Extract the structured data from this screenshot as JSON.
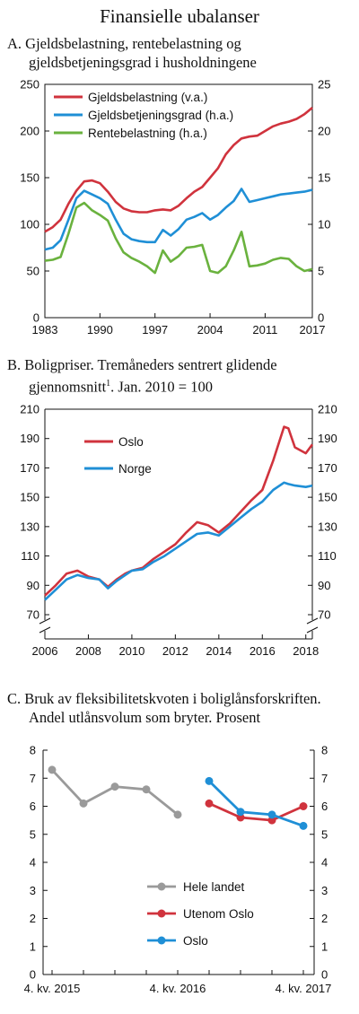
{
  "title": "Finansielle ubalanser",
  "panelA": {
    "title_prefix": "A.",
    "title_line1": "Gjeldsbelastning, rentebelastning og",
    "title_line2": "gjeldsbetjeningsgrad i husholdningene"
  },
  "panelB": {
    "title_prefix": "B.",
    "title_line1": "Boligpriser. Tremåneders sentrert glidende",
    "title_line2": "gjennomsnitt",
    "title_sup": "1",
    "title_line2_end": ". Jan. 2010 = 100"
  },
  "panelC": {
    "title_prefix": "C.",
    "title_line1": "Bruk av fleksibilitetskvoten i boliglånsforskriften.",
    "title_line2": "Andel utlånsvolum som bryter. Prosent"
  },
  "colors": {
    "red": "#d0333d",
    "blue": "#1f8fd6",
    "green": "#6ab23e",
    "gray": "#9a9a9a"
  },
  "chart_data": [
    {
      "type": "line",
      "x_ticks": [
        "1983",
        "1990",
        "1997",
        "2004",
        "2011",
        "2017"
      ],
      "xlim": [
        1983,
        2017
      ],
      "y_left_ticks": [
        "0",
        "50",
        "100",
        "150",
        "200",
        "250"
      ],
      "ylim_left": [
        0,
        250
      ],
      "y_right_ticks": [
        "0",
        "5",
        "10",
        "15",
        "20",
        "25"
      ],
      "ylim_right": [
        0,
        25
      ],
      "series": [
        {
          "name": "Gjeldsbelastning (v.a.)",
          "axis": "left",
          "color": "#d0333d",
          "x": [
            1983,
            1984,
            1985,
            1986,
            1987,
            1988,
            1989,
            1990,
            1991,
            1992,
            1993,
            1994,
            1995,
            1996,
            1997,
            1998,
            1999,
            2000,
            2001,
            2002,
            2003,
            2004,
            2005,
            2006,
            2007,
            2008,
            2009,
            2010,
            2011,
            2012,
            2013,
            2014,
            2015,
            2016,
            2017
          ],
          "y": [
            92,
            97,
            105,
            122,
            136,
            146,
            147,
            144,
            135,
            124,
            117,
            114,
            113,
            113,
            115,
            116,
            115,
            120,
            128,
            135,
            140,
            150,
            160,
            175,
            185,
            192,
            194,
            195,
            200,
            205,
            208,
            210,
            213,
            218,
            225
          ]
        },
        {
          "name": "Gjeldsbetjeningsgrad (h.a.)",
          "axis": "right",
          "color": "#1f8fd6",
          "x": [
            1983,
            1984,
            1985,
            1986,
            1987,
            1988,
            1989,
            1990,
            1991,
            1992,
            1993,
            1994,
            1995,
            1996,
            1997,
            1998,
            1999,
            2000,
            2001,
            2002,
            2003,
            2004,
            2005,
            2006,
            2007,
            2008,
            2009,
            2010,
            2011,
            2012,
            2013,
            2014,
            2015,
            2016,
            2017
          ],
          "y": [
            7.3,
            7.5,
            8.3,
            10.5,
            12.8,
            13.6,
            13.2,
            12.8,
            12.2,
            10.5,
            9.0,
            8.4,
            8.2,
            8.1,
            8.1,
            9.4,
            8.8,
            9.5,
            10.5,
            10.8,
            11.2,
            10.5,
            11.0,
            11.8,
            12.5,
            13.8,
            12.4,
            12.6,
            12.8,
            13.0,
            13.2,
            13.3,
            13.4,
            13.5,
            13.7
          ]
        },
        {
          "name": "Rentebelastning (h.a.)",
          "axis": "right",
          "color": "#6ab23e",
          "x": [
            1983,
            1984,
            1985,
            1986,
            1987,
            1988,
            1989,
            1990,
            1991,
            1992,
            1993,
            1994,
            1995,
            1996,
            1997,
            1998,
            1999,
            2000,
            2001,
            2002,
            2003,
            2004,
            2005,
            2006,
            2007,
            2008,
            2009,
            2010,
            2011,
            2012,
            2013,
            2014,
            2015,
            2016,
            2017
          ],
          "y": [
            6.1,
            6.2,
            6.5,
            9.0,
            11.8,
            12.3,
            11.5,
            11.0,
            10.4,
            8.5,
            7.0,
            6.4,
            6.0,
            5.5,
            4.8,
            7.2,
            6.0,
            6.6,
            7.5,
            7.6,
            7.8,
            5.0,
            4.8,
            5.5,
            7.2,
            9.2,
            5.5,
            5.6,
            5.8,
            6.2,
            6.4,
            6.3,
            5.5,
            5.0,
            5.2
          ]
        }
      ]
    },
    {
      "type": "line",
      "x_ticks": [
        "2006",
        "2008",
        "2010",
        "2012",
        "2014",
        "2016",
        "2018"
      ],
      "xlim": [
        2006,
        2018.3
      ],
      "y_ticks": [
        "70",
        "90",
        "110",
        "130",
        "150",
        "170",
        "190",
        "210"
      ],
      "ylim": [
        70,
        210
      ],
      "axis_break": true,
      "series": [
        {
          "name": "Oslo",
          "color": "#d0333d",
          "x": [
            2006.0,
            2006.5,
            2007.0,
            2007.5,
            2008.0,
            2008.5,
            2008.9,
            2009.3,
            2009.7,
            2010.0,
            2010.5,
            2011.0,
            2011.5,
            2012.0,
            2012.5,
            2013.0,
            2013.5,
            2014.0,
            2014.5,
            2015.0,
            2015.5,
            2016.0,
            2016.5,
            2017.0,
            2017.2,
            2017.5,
            2018.0,
            2018.3
          ],
          "y": [
            83,
            90,
            98,
            100,
            96,
            94,
            89,
            94,
            98,
            100,
            102,
            108,
            113,
            118,
            126,
            133,
            131,
            126,
            132,
            140,
            148,
            155,
            175,
            198,
            197,
            184,
            180,
            186
          ]
        },
        {
          "name": "Norge",
          "color": "#1f8fd6",
          "x": [
            2006.0,
            2006.5,
            2007.0,
            2007.5,
            2008.0,
            2008.5,
            2008.9,
            2009.3,
            2009.7,
            2010.0,
            2010.5,
            2011.0,
            2011.5,
            2012.0,
            2012.5,
            2013.0,
            2013.5,
            2014.0,
            2014.5,
            2015.0,
            2015.5,
            2016.0,
            2016.5,
            2017.0,
            2017.2,
            2017.5,
            2018.0,
            2018.3
          ],
          "y": [
            80,
            87,
            94,
            97,
            95,
            94,
            88,
            93,
            97,
            100,
            101,
            106,
            110,
            115,
            120,
            125,
            126,
            124,
            130,
            136,
            142,
            147,
            155,
            160,
            159,
            158,
            157,
            158
          ]
        }
      ]
    },
    {
      "type": "line",
      "categories": [
        "4. kv. 2015",
        "",
        "",
        "",
        "4. kv. 2016",
        "",
        "",
        "",
        "4. kv. 2017"
      ],
      "x_ticks": [
        "4. kv. 2015",
        "4. kv. 2016",
        "4. kv. 2017"
      ],
      "y_ticks": [
        "0",
        "1",
        "2",
        "3",
        "4",
        "5",
        "6",
        "7",
        "8"
      ],
      "ylim": [
        0,
        8
      ],
      "series": [
        {
          "name": "Hele landet",
          "color": "#9a9a9a",
          "x": [
            0,
            1,
            2,
            3,
            4
          ],
          "y": [
            7.3,
            6.1,
            6.7,
            6.6,
            5.7
          ]
        },
        {
          "name": "Utenom Oslo",
          "color": "#d0333d",
          "x": [
            5,
            6,
            7,
            8
          ],
          "y": [
            6.1,
            5.6,
            5.5,
            6.0
          ]
        },
        {
          "name": "Oslo",
          "color": "#1f8fd6",
          "x": [
            5,
            6,
            7,
            8
          ],
          "y": [
            6.9,
            5.8,
            5.7,
            5.3
          ]
        }
      ]
    }
  ]
}
